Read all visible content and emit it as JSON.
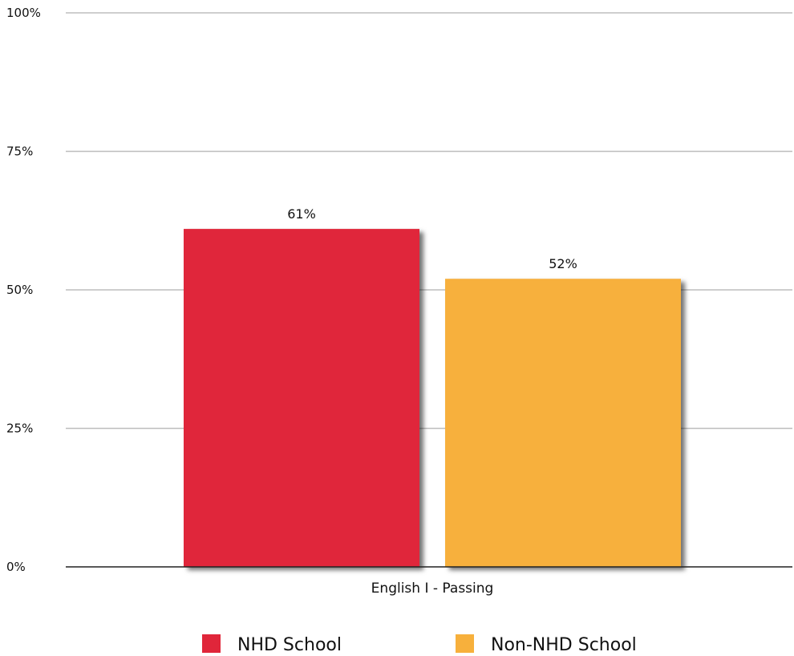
{
  "chart_data": {
    "type": "bar",
    "categories": [
      "English I - Passing"
    ],
    "series": [
      {
        "name": "NHD School",
        "values": [
          61
        ],
        "color": "#e0263a",
        "label": "61%"
      },
      {
        "name": "Non-NHD School",
        "values": [
          52
        ],
        "color": "#f7b03c",
        "label": "52%"
      }
    ],
    "ylim": [
      0,
      100
    ],
    "yticks": [
      0,
      25,
      50,
      75,
      100
    ],
    "ytick_labels": [
      "0%",
      "25%",
      "50%",
      "75%",
      "100%"
    ],
    "grid": true,
    "legend_position": "bottom-center"
  }
}
